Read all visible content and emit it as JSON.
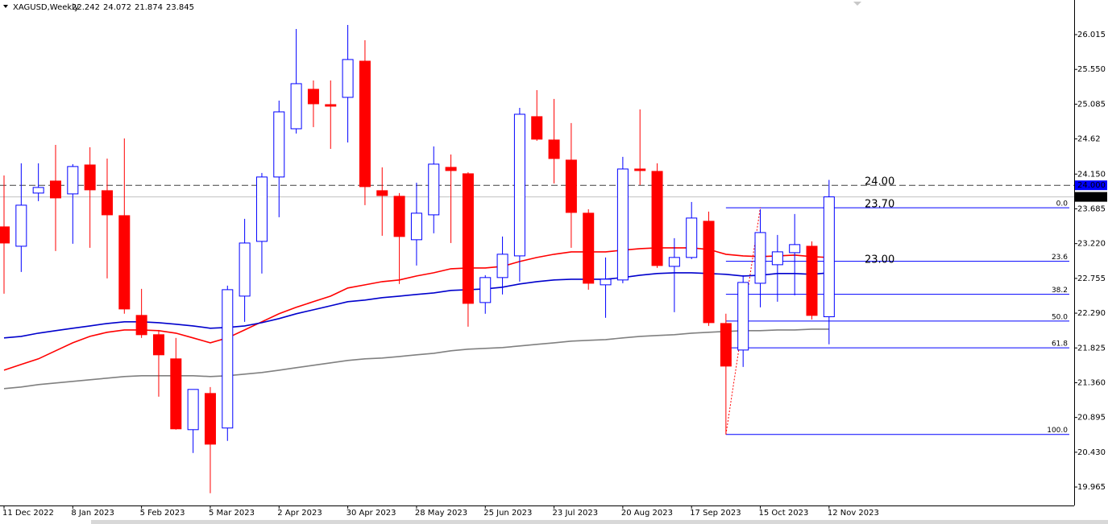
{
  "chart_data": {
    "type": "candlestick",
    "title": "XAGUSD,Weekly",
    "header_values": [
      22.242,
      24.072,
      21.874,
      23.845
    ],
    "categories": [
      "11 Dec 2022",
      null,
      null,
      null,
      "8 Jan 2023",
      null,
      null,
      null,
      "5 Feb 2023",
      null,
      null,
      null,
      "5 Mar 2023",
      null,
      null,
      null,
      "2 Apr 2023",
      null,
      null,
      null,
      "30 Apr 2023",
      null,
      null,
      null,
      "28 May 2023",
      null,
      null,
      null,
      "25 Jun 2023",
      null,
      null,
      null,
      "23 Jul 2023",
      null,
      null,
      null,
      "20 Aug 2023",
      null,
      null,
      null,
      "17 Sep 2023",
      null,
      null,
      null,
      "15 Oct 2023",
      null,
      null,
      null,
      "12 Nov 2023"
    ],
    "open": [
      23.444,
      23.185,
      23.896,
      24.057,
      23.885,
      24.272,
      23.928,
      23.594,
      22.26,
      22.002,
      21.679,
      20.732,
      21.216,
      20.754,
      22.518,
      23.25,
      24.111,
      24.756,
      25.284,
      25.079,
      25.176,
      25.66,
      23.928,
      23.853,
      23.272,
      23.605,
      24.24,
      24.154,
      22.432,
      22.766,
      23.056,
      24.918,
      24.606,
      24.337,
      23.627,
      22.669,
      22.734,
      24.218,
      24.186,
      22.916,
      23.035,
      23.519,
      22.152,
      21.797,
      22.69,
      22.938,
      23.099,
      23.185,
      22.242
    ],
    "high": [
      24.132,
      24.294,
      24.294,
      24.541,
      24.283,
      24.509,
      24.358,
      24.627,
      22.615,
      22.066,
      21.959,
      21.27,
      21.302,
      22.658,
      23.551,
      24.165,
      25.133,
      26.091,
      25.402,
      25.402,
      26.144,
      25.94,
      24.24,
      23.896,
      24.035,
      24.52,
      24.412,
      24.175,
      22.798,
      23.315,
      25.036,
      25.273,
      25.155,
      24.832,
      23.68,
      23.035,
      24.38,
      25.015,
      24.294,
      23.293,
      23.777,
      23.648,
      22.282,
      22.798,
      23.68,
      23.336,
      23.616,
      23.25,
      24.072
    ],
    "low": [
      22.551,
      22.841,
      23.788,
      23.121,
      23.218,
      23.164,
      22.755,
      22.282,
      21.959,
      21.173,
      20.732,
      20.42,
      19.882,
      20.582,
      22.174,
      22.82,
      23.573,
      24.692,
      24.778,
      24.487,
      24.573,
      23.734,
      23.325,
      22.68,
      22.927,
      23.358,
      23.228,
      22.109,
      22.282,
      22.54,
      22.712,
      24.595,
      24.025,
      23.164,
      22.604,
      22.228,
      22.69,
      24.003,
      22.895,
      22.303,
      23.013,
      22.12,
      20.668,
      21.571,
      22.368,
      22.443,
      22.529,
      22.206,
      21.874
    ],
    "close": [
      23.228,
      23.734,
      23.971,
      23.831,
      24.251,
      23.939,
      23.605,
      22.346,
      22.002,
      21.733,
      20.743,
      21.27,
      20.538,
      22.604,
      23.228,
      24.111,
      24.982,
      25.359,
      25.09,
      25.058,
      25.682,
      23.982,
      23.863,
      23.315,
      23.627,
      24.283,
      24.197,
      22.421,
      22.766,
      23.078,
      24.95,
      24.617,
      24.358,
      23.637,
      22.69,
      22.744,
      24.218,
      24.197,
      22.927,
      23.035,
      23.562,
      22.163,
      21.582,
      22.701,
      23.368,
      23.11,
      23.207,
      22.26,
      23.845
    ],
    "up_color": "#0000ff",
    "down_color": "#ff0000",
    "series": [
      {
        "color": "#ff0000",
        "values": [
          21.528,
          21.604,
          21.679,
          21.787,
          21.894,
          21.98,
          22.034,
          22.066,
          22.066,
          22.056,
          22.023,
          21.959,
          21.894,
          21.959,
          22.066,
          22.174,
          22.282,
          22.368,
          22.443,
          22.518,
          22.626,
          22.669,
          22.712,
          22.734,
          22.787,
          22.83,
          22.884,
          22.895,
          22.895,
          22.916,
          22.981,
          23.035,
          23.078,
          23.11,
          23.11,
          23.11,
          23.132,
          23.153,
          23.164,
          23.164,
          23.164,
          23.142,
          23.078,
          23.056,
          23.046,
          23.056,
          23.067,
          23.046,
          23.035
        ]
      },
      {
        "color": "#0000cc",
        "values": [
          21.959,
          21.98,
          22.023,
          22.056,
          22.088,
          22.12,
          22.152,
          22.174,
          22.174,
          22.163,
          22.142,
          22.12,
          22.088,
          22.099,
          22.12,
          22.163,
          22.217,
          22.282,
          22.335,
          22.389,
          22.443,
          22.465,
          22.497,
          22.518,
          22.54,
          22.561,
          22.594,
          22.604,
          22.615,
          22.637,
          22.68,
          22.712,
          22.734,
          22.744,
          22.744,
          22.744,
          22.766,
          22.798,
          22.82,
          22.83,
          22.83,
          22.82,
          22.809,
          22.787,
          22.798,
          22.82,
          22.82,
          22.809,
          22.83
        ]
      },
      {
        "color": "#808080",
        "values": [
          21.281,
          21.302,
          21.335,
          21.356,
          21.378,
          21.399,
          21.421,
          21.442,
          21.453,
          21.453,
          21.453,
          21.453,
          21.442,
          21.453,
          21.475,
          21.496,
          21.528,
          21.561,
          21.593,
          21.625,
          21.658,
          21.679,
          21.69,
          21.711,
          21.733,
          21.754,
          21.787,
          21.808,
          21.819,
          21.83,
          21.851,
          21.873,
          21.894,
          21.916,
          21.927,
          21.937,
          21.959,
          21.98,
          21.991,
          22.002,
          22.023,
          22.034,
          22.045,
          22.056,
          22.056,
          22.066,
          22.066,
          22.077,
          22.077
        ]
      }
    ],
    "ylim": [
      19.718,
      26.478
    ],
    "yticks": [
      26.015,
      {
        "value": 25.55,
        "label": "25.550"
      },
      25.085,
      24.62,
      {
        "value": 24.15,
        "label": "24.150"
      },
      23.685,
      {
        "value": 23.22,
        "label": "23.220"
      },
      22.755,
      {
        "value": 22.29,
        "label": "22.290"
      },
      21.825,
      {
        "value": 21.36,
        "label": "21.360"
      },
      20.895,
      {
        "value": 20.43,
        "label": "20.430"
      },
      19.965
    ],
    "levels": [
      {
        "label": "24.00",
        "value": 24.0
      },
      {
        "label": "23.70",
        "value": 23.7
      },
      {
        "label": "23.00",
        "value": 23.0
      }
    ],
    "fib": {
      "color": "#0000ff",
      "levels": [
        {
          "label": "0.0",
          "value": 23.7
        },
        {
          "label": "23.6",
          "value": 22.984
        },
        {
          "label": "38.2",
          "value": 22.542
        },
        {
          "label": "50.0",
          "value": 22.184
        },
        {
          "label": "61.8",
          "value": 21.826
        },
        {
          "label": "100.0",
          "value": 20.668
        }
      ]
    },
    "price_markers": [
      {
        "label": "24.000",
        "value": 24.0,
        "color": "#0000ff"
      },
      {
        "label": "23.845",
        "value": 23.845,
        "color": "#000000"
      }
    ]
  }
}
